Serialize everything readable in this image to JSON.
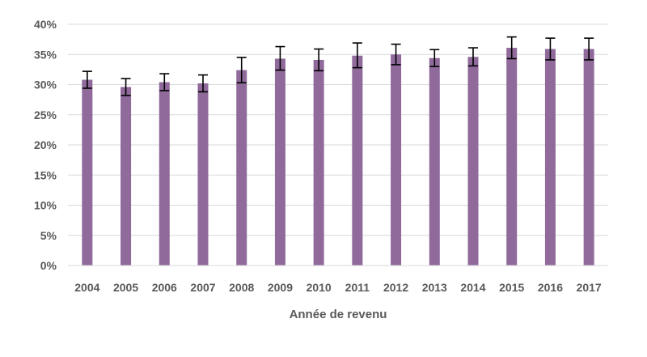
{
  "chart_data": {
    "type": "bar",
    "xlabel": "Année de revenu",
    "ylabel": "",
    "ylim": [
      0,
      40
    ],
    "y_ticks": [
      0,
      5,
      10,
      15,
      20,
      25,
      30,
      35,
      40
    ],
    "y_tick_suffix": "%",
    "grid": true,
    "legend": "none",
    "bar_color": "#8f6a9b",
    "error_bar_color": "#000000",
    "categories": [
      "2004",
      "2005",
      "2006",
      "2007",
      "2008",
      "2009",
      "2010",
      "2011",
      "2012",
      "2013",
      "2014",
      "2015",
      "2016",
      "2017"
    ],
    "values": [
      30.8,
      29.6,
      30.4,
      30.2,
      32.4,
      34.3,
      34.1,
      34.8,
      35.0,
      34.4,
      34.6,
      36.1,
      35.9,
      35.9
    ],
    "error_low": [
      29.4,
      28.2,
      29.0,
      28.8,
      30.3,
      32.4,
      32.3,
      32.8,
      33.3,
      33.0,
      33.1,
      34.3,
      34.1,
      34.1
    ],
    "error_high": [
      32.2,
      31.0,
      31.8,
      31.6,
      34.5,
      36.3,
      35.9,
      36.9,
      36.7,
      35.8,
      36.1,
      37.9,
      37.7,
      37.7
    ]
  }
}
